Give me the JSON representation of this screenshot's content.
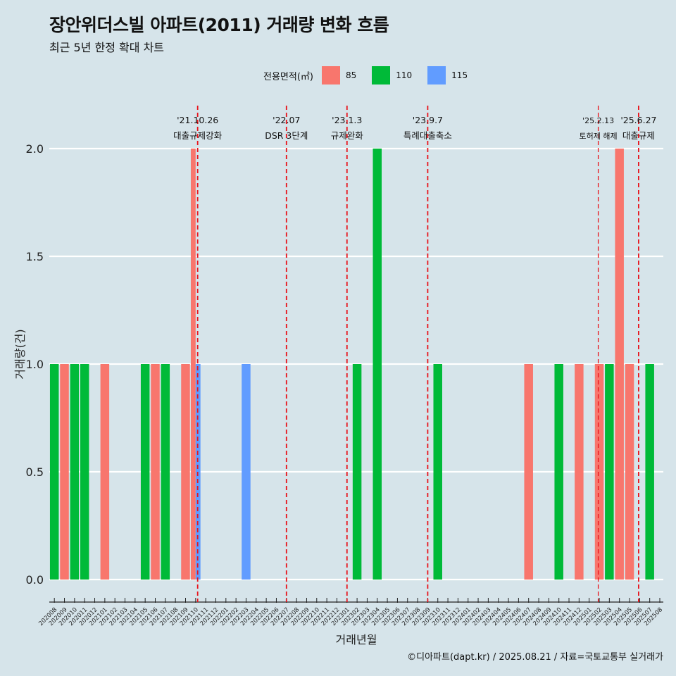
{
  "title": "장안위더스빌 아파트(2011) 거래량 변화 흐름",
  "subtitle": "최근 5년 한정 확대 차트",
  "caption": "©디아파트(dapt.kr) / 2025.08.21 / 자료=국토교통부 실거래가",
  "legend": {
    "title": "전용면적(㎡)",
    "items": [
      {
        "label": "85",
        "color": "#f8766d"
      },
      {
        "label": "110",
        "color": "#00ba38"
      },
      {
        "label": "115",
        "color": "#619cff"
      }
    ]
  },
  "chart_data": {
    "type": "bar",
    "title": "장안위더스빌 아파트(2011) 거래량 변화 흐름",
    "xlabel": "거래년월",
    "ylabel": "거래량(건)",
    "ylim": [
      0,
      2.0
    ],
    "yticks": [
      "0.0",
      "0.5",
      "1.0",
      "1.5",
      "2.0"
    ],
    "ytick_values": [
      0,
      0.5,
      1.0,
      1.5,
      2.0
    ],
    "categories": [
      "202008",
      "202009",
      "202010",
      "202011",
      "202012",
      "202101",
      "202102",
      "202103",
      "202104",
      "202105",
      "202106",
      "202107",
      "202108",
      "202109",
      "202110",
      "202111",
      "202112",
      "202201",
      "202202",
      "202203",
      "202204",
      "202205",
      "202206",
      "202207",
      "202208",
      "202209",
      "202210",
      "202211",
      "202212",
      "202301",
      "202302",
      "202303",
      "202304",
      "202305",
      "202306",
      "202307",
      "202308",
      "202309",
      "202310",
      "202311",
      "202312",
      "202401",
      "202402",
      "202403",
      "202404",
      "202405",
      "202406",
      "202407",
      "202408",
      "202409",
      "202410",
      "202411",
      "202412",
      "202501",
      "202502",
      "202503",
      "202504",
      "202505",
      "202506",
      "202507",
      "202508"
    ],
    "bars": [
      {
        "month": "202008",
        "area": "110",
        "value": 1
      },
      {
        "month": "202009",
        "area": "85",
        "value": 1
      },
      {
        "month": "202010",
        "area": "110",
        "value": 1
      },
      {
        "month": "202011",
        "area": "110",
        "value": 1
      },
      {
        "month": "202101",
        "area": "85",
        "value": 1
      },
      {
        "month": "202105",
        "area": "110",
        "value": 1
      },
      {
        "month": "202106",
        "area": "85",
        "value": 1
      },
      {
        "month": "202107",
        "area": "110",
        "value": 1
      },
      {
        "month": "202109",
        "area": "85",
        "value": 1
      },
      {
        "month": "202110",
        "area": "85",
        "value": 2
      },
      {
        "month": "202110",
        "area": "115",
        "value": 1
      },
      {
        "month": "202203",
        "area": "115",
        "value": 1
      },
      {
        "month": "202302",
        "area": "110",
        "value": 1
      },
      {
        "month": "202304",
        "area": "110",
        "value": 2
      },
      {
        "month": "202310",
        "area": "110",
        "value": 1
      },
      {
        "month": "202407",
        "area": "85",
        "value": 1
      },
      {
        "month": "202410",
        "area": "110",
        "value": 1
      },
      {
        "month": "202412",
        "area": "85",
        "value": 1
      },
      {
        "month": "202502",
        "area": "85",
        "value": 1
      },
      {
        "month": "202503",
        "area": "110",
        "value": 1
      },
      {
        "month": "202504",
        "area": "85",
        "value": 2
      },
      {
        "month": "202505",
        "area": "85",
        "value": 1
      },
      {
        "month": "202507",
        "area": "110",
        "value": 1
      }
    ],
    "annotations": [
      {
        "line1": "'21.10.26",
        "line2": "대출규제강화",
        "month_pos": 14.2,
        "small": false
      },
      {
        "line1": "'22.07",
        "line2": "DSR 3단계",
        "month_pos": 23.0,
        "small": false
      },
      {
        "line1": "'23.1.3",
        "line2": "규제완화",
        "month_pos": 29.0,
        "small": false
      },
      {
        "line1": "'23.9.7",
        "line2": "특례대출축소",
        "month_pos": 37.0,
        "small": false
      },
      {
        "line1": "'25.2.13",
        "line2": "토허제 해제",
        "month_pos": 53.9,
        "small": true
      },
      {
        "line1": "'25.6.27",
        "line2": "대출규제",
        "month_pos": 57.9,
        "small": false
      }
    ]
  }
}
